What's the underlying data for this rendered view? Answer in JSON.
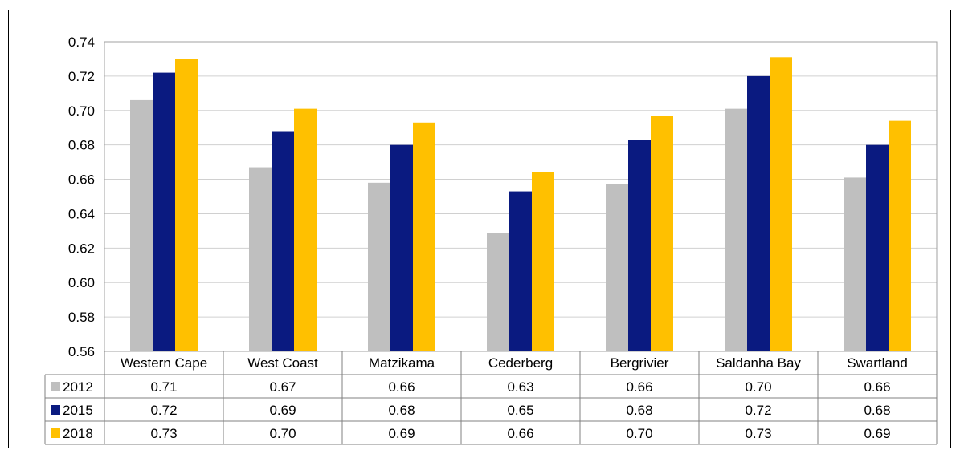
{
  "chart_data": {
    "type": "bar",
    "categories": [
      "Western Cape",
      "West Coast",
      "Matzikama",
      "Cederberg",
      "Bergrivier",
      "Saldanha Bay",
      "Swartland"
    ],
    "series": [
      {
        "name": "2012",
        "color": "#bfbfbf",
        "values": [
          0.706,
          0.667,
          0.658,
          0.629,
          0.657,
          0.701,
          0.661
        ],
        "labels": [
          "0.71",
          "0.67",
          "0.66",
          "0.63",
          "0.66",
          "0.70",
          "0.66"
        ]
      },
      {
        "name": "2015",
        "color": "#0a1a80",
        "values": [
          0.722,
          0.688,
          0.68,
          0.653,
          0.683,
          0.72,
          0.68
        ],
        "labels": [
          "0.72",
          "0.69",
          "0.68",
          "0.65",
          "0.68",
          "0.72",
          "0.68"
        ]
      },
      {
        "name": "2018",
        "color": "#ffc000",
        "values": [
          0.73,
          0.701,
          0.693,
          0.664,
          0.697,
          0.731,
          0.694
        ],
        "labels": [
          "0.73",
          "0.70",
          "0.69",
          "0.66",
          "0.70",
          "0.73",
          "0.69"
        ]
      }
    ],
    "ylim": [
      0.56,
      0.74
    ],
    "yticks": [
      "0.74",
      "0.72",
      "0.70",
      "0.68",
      "0.66",
      "0.64",
      "0.62",
      "0.60",
      "0.58",
      "0.56"
    ],
    "grid": true,
    "legend": "data-table"
  }
}
